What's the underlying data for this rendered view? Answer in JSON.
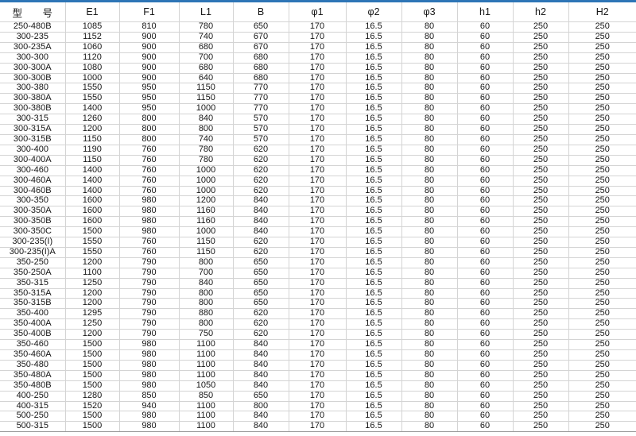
{
  "colors": {
    "accent_bar": "#2E75B6",
    "gridline": "#d4d4d4",
    "bottom_edge": "#9a9a9a",
    "text": "#161616",
    "background": "#ffffff"
  },
  "table": {
    "columns": [
      {
        "key": "model",
        "label": "型 号"
      },
      {
        "key": "e1",
        "label": "E1"
      },
      {
        "key": "f1",
        "label": "F1"
      },
      {
        "key": "l1",
        "label": "L1"
      },
      {
        "key": "b",
        "label": "B"
      },
      {
        "key": "phi1",
        "label": "φ1"
      },
      {
        "key": "phi2",
        "label": "φ2"
      },
      {
        "key": "phi3",
        "label": "φ3"
      },
      {
        "key": "h1",
        "label": "h1"
      },
      {
        "key": "h2",
        "label": "h2"
      },
      {
        "key": "H2",
        "label": "H2"
      }
    ],
    "rows": [
      [
        "250-480B",
        "1085",
        "810",
        "780",
        "650",
        "170",
        "16.5",
        "80",
        "60",
        "250",
        "250"
      ],
      [
        "300-235",
        "1152",
        "900",
        "740",
        "670",
        "170",
        "16.5",
        "80",
        "60",
        "250",
        "250"
      ],
      [
        "300-235A",
        "1060",
        "900",
        "680",
        "670",
        "170",
        "16.5",
        "80",
        "60",
        "250",
        "250"
      ],
      [
        "300-300",
        "1120",
        "900",
        "700",
        "680",
        "170",
        "16.5",
        "80",
        "60",
        "250",
        "250"
      ],
      [
        "300-300A",
        "1080",
        "900",
        "680",
        "680",
        "170",
        "16.5",
        "80",
        "60",
        "250",
        "250"
      ],
      [
        "300-300B",
        "1000",
        "900",
        "640",
        "680",
        "170",
        "16.5",
        "80",
        "60",
        "250",
        "250"
      ],
      [
        "300-380",
        "1550",
        "950",
        "1150",
        "770",
        "170",
        "16.5",
        "80",
        "60",
        "250",
        "250"
      ],
      [
        "300-380A",
        "1550",
        "950",
        "1150",
        "770",
        "170",
        "16.5",
        "80",
        "60",
        "250",
        "250"
      ],
      [
        "300-380B",
        "1400",
        "950",
        "1000",
        "770",
        "170",
        "16.5",
        "80",
        "60",
        "250",
        "250"
      ],
      [
        "300-315",
        "1260",
        "800",
        "840",
        "570",
        "170",
        "16.5",
        "80",
        "60",
        "250",
        "250"
      ],
      [
        "300-315A",
        "1200",
        "800",
        "800",
        "570",
        "170",
        "16.5",
        "80",
        "60",
        "250",
        "250"
      ],
      [
        "300-315B",
        "1150",
        "800",
        "740",
        "570",
        "170",
        "16.5",
        "80",
        "60",
        "250",
        "250"
      ],
      [
        "300-400",
        "1190",
        "760",
        "780",
        "620",
        "170",
        "16.5",
        "80",
        "60",
        "250",
        "250"
      ],
      [
        "300-400A",
        "1150",
        "760",
        "780",
        "620",
        "170",
        "16.5",
        "80",
        "60",
        "250",
        "250"
      ],
      [
        "300-460",
        "1400",
        "760",
        "1000",
        "620",
        "170",
        "16.5",
        "80",
        "60",
        "250",
        "250"
      ],
      [
        "300-460A",
        "1400",
        "760",
        "1000",
        "620",
        "170",
        "16.5",
        "80",
        "60",
        "250",
        "250"
      ],
      [
        "300-460B",
        "1400",
        "760",
        "1000",
        "620",
        "170",
        "16.5",
        "80",
        "60",
        "250",
        "250"
      ],
      [
        "300-350",
        "1600",
        "980",
        "1200",
        "840",
        "170",
        "16.5",
        "80",
        "60",
        "250",
        "250"
      ],
      [
        "300-350A",
        "1600",
        "980",
        "1160",
        "840",
        "170",
        "16.5",
        "80",
        "60",
        "250",
        "250"
      ],
      [
        "300-350B",
        "1600",
        "980",
        "1160",
        "840",
        "170",
        "16.5",
        "80",
        "60",
        "250",
        "250"
      ],
      [
        "300-350C",
        "1500",
        "980",
        "1000",
        "840",
        "170",
        "16.5",
        "80",
        "60",
        "250",
        "250"
      ],
      [
        "300-235(I)",
        "1550",
        "760",
        "1150",
        "620",
        "170",
        "16.5",
        "80",
        "60",
        "250",
        "250"
      ],
      [
        "300-235(I)A",
        "1550",
        "760",
        "1150",
        "620",
        "170",
        "16.5",
        "80",
        "60",
        "250",
        "250"
      ],
      [
        "350-250",
        "1200",
        "790",
        "800",
        "650",
        "170",
        "16.5",
        "80",
        "60",
        "250",
        "250"
      ],
      [
        "350-250A",
        "1100",
        "790",
        "700",
        "650",
        "170",
        "16.5",
        "80",
        "60",
        "250",
        "250"
      ],
      [
        "350-315",
        "1250",
        "790",
        "840",
        "650",
        "170",
        "16.5",
        "80",
        "60",
        "250",
        "250"
      ],
      [
        "350-315A",
        "1200",
        "790",
        "800",
        "650",
        "170",
        "16.5",
        "80",
        "60",
        "250",
        "250"
      ],
      [
        "350-315B",
        "1200",
        "790",
        "800",
        "650",
        "170",
        "16.5",
        "80",
        "60",
        "250",
        "250"
      ],
      [
        "350-400",
        "1295",
        "790",
        "880",
        "620",
        "170",
        "16.5",
        "80",
        "60",
        "250",
        "250"
      ],
      [
        "350-400A",
        "1250",
        "790",
        "800",
        "620",
        "170",
        "16.5",
        "80",
        "60",
        "250",
        "250"
      ],
      [
        "350-400B",
        "1200",
        "790",
        "750",
        "620",
        "170",
        "16.5",
        "80",
        "60",
        "250",
        "250"
      ],
      [
        "350-460",
        "1500",
        "980",
        "1100",
        "840",
        "170",
        "16.5",
        "80",
        "60",
        "250",
        "250"
      ],
      [
        "350-460A",
        "1500",
        "980",
        "1100",
        "840",
        "170",
        "16.5",
        "80",
        "60",
        "250",
        "250"
      ],
      [
        "350-480",
        "1500",
        "980",
        "1100",
        "840",
        "170",
        "16.5",
        "80",
        "60",
        "250",
        "250"
      ],
      [
        "350-480A",
        "1500",
        "980",
        "1100",
        "840",
        "170",
        "16.5",
        "80",
        "60",
        "250",
        "250"
      ],
      [
        "350-480B",
        "1500",
        "980",
        "1050",
        "840",
        "170",
        "16.5",
        "80",
        "60",
        "250",
        "250"
      ],
      [
        "400-250",
        "1280",
        "850",
        "850",
        "650",
        "170",
        "16.5",
        "80",
        "60",
        "250",
        "250"
      ],
      [
        "400-315",
        "1520",
        "940",
        "1100",
        "800",
        "170",
        "16.5",
        "80",
        "60",
        "250",
        "250"
      ],
      [
        "500-250",
        "1500",
        "980",
        "1100",
        "840",
        "170",
        "16.5",
        "80",
        "60",
        "250",
        "250"
      ],
      [
        "500-315",
        "1500",
        "980",
        "1100",
        "840",
        "170",
        "16.5",
        "80",
        "60",
        "250",
        "250"
      ]
    ]
  }
}
